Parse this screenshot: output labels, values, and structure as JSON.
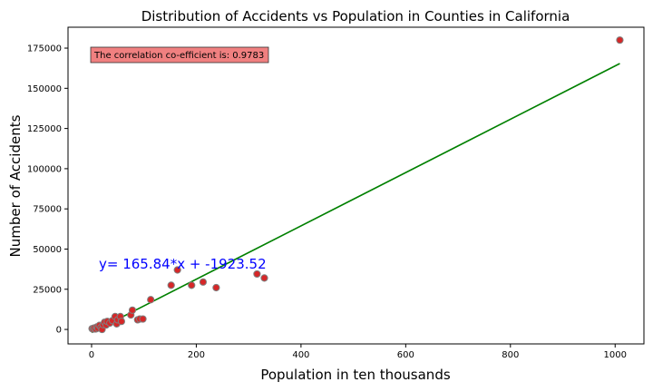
{
  "chart_data": {
    "type": "scatter",
    "title": "Distribution of Accidents vs Population in Counties in California",
    "xlabel": "Population in ten thousands",
    "ylabel": "Number of Accidents",
    "xlim": [
      -45,
      1055
    ],
    "ylim": [
      -9000,
      188000
    ],
    "xticks": [
      0,
      200,
      400,
      600,
      800,
      1000
    ],
    "yticks": [
      0,
      25000,
      50000,
      75000,
      100000,
      125000,
      150000,
      175000
    ],
    "grid": false,
    "points": [
      [
        1,
        500
      ],
      [
        3,
        200
      ],
      [
        5,
        900
      ],
      [
        8,
        300
      ],
      [
        10,
        1500
      ],
      [
        12,
        800
      ],
      [
        15,
        2500
      ],
      [
        18,
        1200
      ],
      [
        20,
        0
      ],
      [
        22,
        3000
      ],
      [
        25,
        4500
      ],
      [
        28,
        2800
      ],
      [
        30,
        5000
      ],
      [
        35,
        4000
      ],
      [
        40,
        5500
      ],
      [
        45,
        8000
      ],
      [
        48,
        3500
      ],
      [
        50,
        6000
      ],
      [
        55,
        8000
      ],
      [
        57,
        5000
      ],
      [
        75,
        9000
      ],
      [
        78,
        12000
      ],
      [
        88,
        6000
      ],
      [
        92,
        6500
      ],
      [
        98,
        6500
      ],
      [
        113,
        18500
      ],
      [
        152,
        27500
      ],
      [
        164,
        37000
      ],
      [
        191,
        27500
      ],
      [
        213,
        29500
      ],
      [
        238,
        26000
      ],
      [
        316,
        34500
      ],
      [
        330,
        32000
      ],
      [
        1009,
        180000
      ]
    ],
    "regression": {
      "slope": 165.84,
      "intercept": -1923.52,
      "x_range": [
        0,
        1009
      ]
    },
    "annotations": {
      "equation": "y= 165.84*x + -1923.52",
      "correlation": "The correlation co-efficient is: 0.9783"
    },
    "colors": {
      "points_fill": "#d62728",
      "points_edge": "#7f7f7f",
      "regression_line": "#008000",
      "equation_text": "#0000ff",
      "corr_box_fill": "#f08080"
    }
  }
}
